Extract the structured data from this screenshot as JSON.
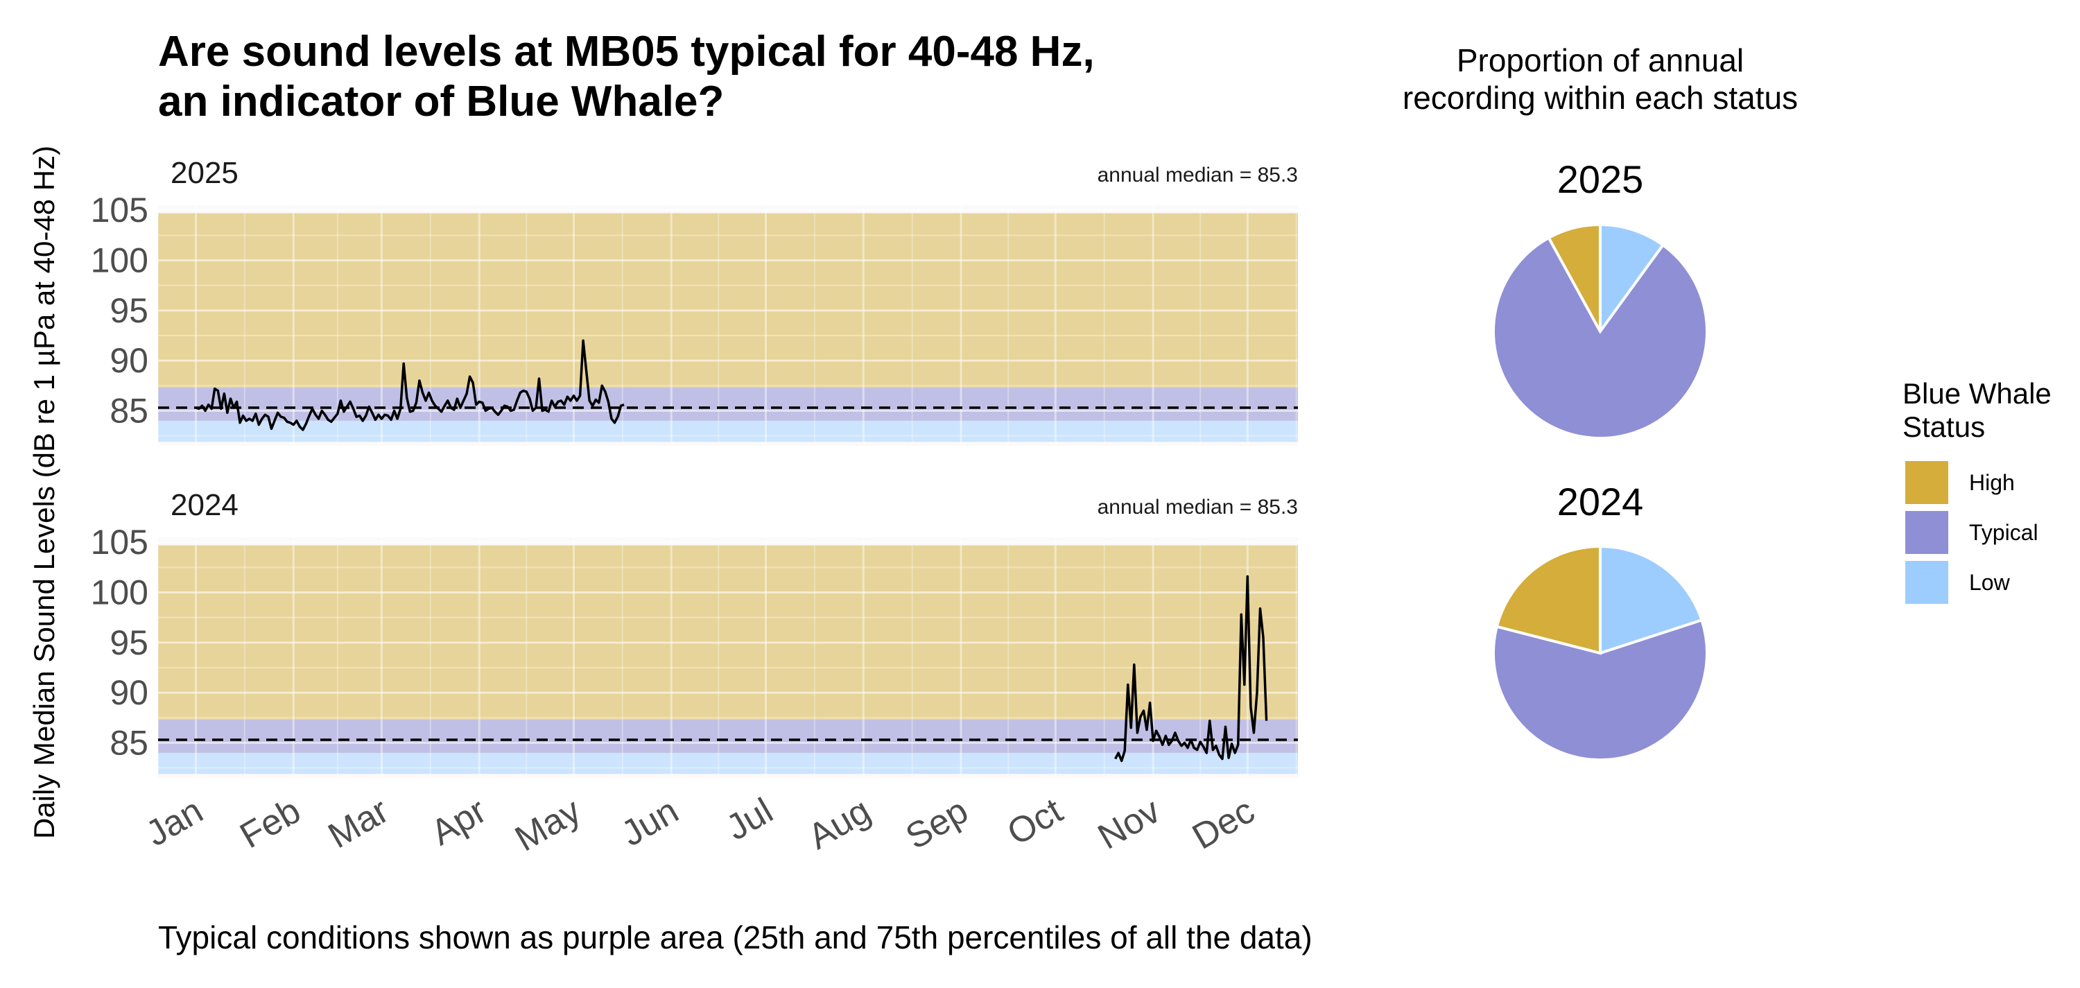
{
  "title_line1": "Are sound levels at MB05 typical for 40-48 Hz,",
  "title_line2": "an indicator of Blue Whale?",
  "pie_title_line1": "Proportion of annual",
  "pie_title_line2": "recording within each status",
  "caption": "Typical conditions shown as purple area (25th and 75th percentiles of all the data)",
  "colors": {
    "high": "#d4ad3a",
    "typical": "#8f8fd6",
    "low": "#9dcdff"
  },
  "legend": {
    "title_line1": "Blue Whale",
    "title_line2": "Status",
    "items": [
      {
        "key": "high",
        "label": "High"
      },
      {
        "key": "typical",
        "label": "Typical"
      },
      {
        "key": "low",
        "label": "Low"
      }
    ]
  },
  "chart_data": [
    {
      "type": "line",
      "facet": "2025",
      "annotation": "annual median = 85.3",
      "ylabel": "Daily Median Sound Levels (dB re 1 µPa at 40-48 Hz)",
      "yticks": [
        85,
        90,
        95,
        100,
        105
      ],
      "ylim": [
        81.5,
        105.5
      ],
      "xlim_day": [
        -12,
        350
      ],
      "month_labels": [
        "Jan",
        "Feb",
        "Mar",
        "Apr",
        "May",
        "Jun",
        "Jul",
        "Aug",
        "Sep",
        "Oct",
        "Nov",
        "Dec"
      ],
      "median": 85.3,
      "bands": {
        "low": [
          81.9,
          84.0
        ],
        "typical": [
          84.0,
          87.3
        ],
        "high": [
          87.3,
          104.7
        ]
      },
      "series": [
        {
          "segments": [
            {
              "start_day": 0,
              "values": [
                85.3,
                85.2,
                85.5,
                85.0,
                85.6,
                85.2,
                87.2,
                87.0,
                85.2,
                86.7,
                84.8,
                86.2,
                85.3,
                85.9,
                83.8,
                84.5,
                84.0,
                84.2,
                84.0,
                84.7,
                83.6,
                84.2,
                84.6,
                84.4,
                83.2,
                84.0,
                84.8,
                84.4,
                84.3,
                83.9,
                83.8,
                83.6,
                84.0,
                83.4,
                83.1,
                83.7,
                84.5,
                85.2,
                84.6,
                84.2,
                85.0,
                84.6,
                84.1,
                83.9,
                84.3,
                84.7,
                86.0,
                84.9,
                85.4,
                85.9,
                85.2,
                84.4,
                84.5,
                84.0,
                84.5,
                85.4,
                84.8,
                84.1,
                84.6,
                84.2,
                84.6,
                84.5,
                84.1,
                85.0,
                84.2,
                85.2,
                89.7,
                86.3,
                84.9,
                85.0,
                85.8,
                88.0,
                86.8,
                86.0,
                86.8,
                86.0,
                85.5,
                85.2,
                84.9,
                85.5,
                86.0,
                85.3,
                85.1,
                86.2,
                85.3,
                86.0,
                86.7,
                88.4,
                87.8,
                85.6,
                85.9,
                85.8,
                85.0,
                85.2,
                85.3,
                84.9,
                84.6,
                85.0,
                85.5,
                85.4,
                85.0,
                85.1,
                86.0,
                86.8,
                87.0,
                86.9,
                86.2,
                85.0,
                85.3,
                88.2,
                85.0,
                85.1,
                84.9,
                86.0,
                85.4,
                85.9,
                86.0,
                85.6,
                86.4,
                86.0,
                86.5,
                86.0,
                86.5,
                92.0,
                89.0,
                86.0,
                85.5,
                86.1,
                85.8,
                87.5,
                86.9,
                85.9,
                84.2,
                83.8,
                84.4,
                85.5,
                85.6
              ]
            }
          ]
        }
      ]
    },
    {
      "type": "line",
      "facet": "2024",
      "annotation": "annual median = 85.3",
      "ylabel": "Daily Median Sound Levels (dB re 1 µPa at 40-48 Hz)",
      "yticks": [
        85,
        90,
        95,
        100,
        105
      ],
      "ylim": [
        81.5,
        105.5
      ],
      "xlim_day": [
        -12,
        350
      ],
      "month_labels": [
        "Jan",
        "Feb",
        "Mar",
        "Apr",
        "May",
        "Jun",
        "Jul",
        "Aug",
        "Sep",
        "Oct",
        "Nov",
        "Dec"
      ],
      "median": 85.3,
      "bands": {
        "low": [
          81.9,
          84.0
        ],
        "typical": [
          84.0,
          87.3
        ],
        "high": [
          87.3,
          104.7
        ]
      },
      "series": [
        {
          "segments": [
            {
              "start_day": 292,
              "values": [
                83.4,
                84.0,
                83.2,
                84.2,
                90.8,
                86.5,
                92.8,
                86.0,
                87.6,
                88.2,
                86.3,
                89.0,
                85.2,
                86.2,
                85.6,
                84.8,
                85.7,
                84.8,
                85.2,
                86.0,
                85.2,
                84.7,
                85.0,
                84.5,
                85.3,
                84.5,
                84.3,
                85.1,
                84.6,
                84.0,
                87.2,
                84.3,
                84.7,
                83.8,
                83.4,
                86.6,
                83.5,
                84.9,
                84.0,
                84.8,
                97.8,
                90.8,
                101.6,
                88.6,
                86.0,
                90.0,
                98.4,
                95.5,
                87.2
              ]
            }
          ]
        }
      ]
    },
    {
      "type": "pie",
      "facet": "2025",
      "categories": [
        "Low",
        "Typical",
        "High"
      ],
      "values": [
        0.1,
        0.82,
        0.08
      ]
    },
    {
      "type": "pie",
      "facet": "2024",
      "categories": [
        "Low",
        "Typical",
        "High"
      ],
      "values": [
        0.2,
        0.59,
        0.21
      ]
    }
  ]
}
